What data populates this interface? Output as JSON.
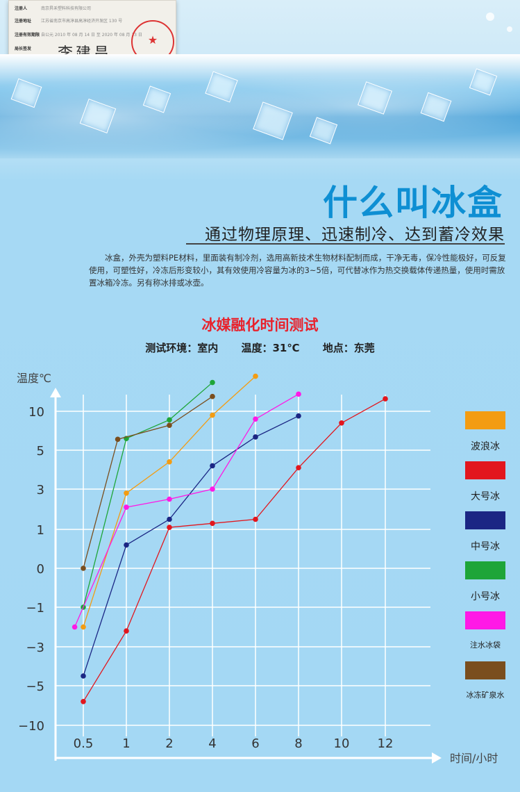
{
  "certificate": {
    "rows": [
      {
        "label": "注册人",
        "value": "南京昇禾塑料科技有限公司"
      },
      {
        "label": "注册地址",
        "value": "江苏省南京市高淳县高淳经济开发区 130 号"
      },
      {
        "label": "注册有效期限",
        "value": "自公元   2010 年 08 月 14 日      至   2020 年 08 月 13 日"
      },
      {
        "label": "局长签发",
        "value": ""
      }
    ],
    "signature": "李建昌",
    "seal_text": "★"
  },
  "header": {
    "title": "什么叫冰盒",
    "subtitle": "通过物理原理、迅速制冷、达到蓄冷效果",
    "description": "冰盒，外壳为塑料PE材料，里面装有制冷剂，选用高新技术生物材料配制而成，干净无毒，保冷性能极好，可反复使用，可塑性好，冷冻后形变较小，其有效使用冷容量为冰的3~5倍，可代替冰作为热交换载体传递热量，使用时需放置冰箱冷冻。另有称冰排或冰壶。"
  },
  "chart_data": {
    "type": "line",
    "title": "冰媒融化时间测试",
    "environment": [
      "测试环境：室内",
      "温度：31℃",
      "地点：东莞"
    ],
    "xlabel": "时间/小时",
    "ylabel": "温度℃",
    "x_ticks": [
      "0.5",
      "1",
      "2",
      "4",
      "6",
      "8",
      "10",
      "12"
    ],
    "y_ticks": [
      "10",
      "5",
      "3",
      "1",
      "0",
      "-1",
      "-3",
      "-5",
      "-10"
    ],
    "grid": true,
    "legend_position": "right",
    "note": "",
    "series": [
      {
        "name": "波浪冰",
        "color": "#f39c12",
        "points": [
          [
            "0.5",
            "-2"
          ],
          [
            "1",
            "2.8"
          ],
          [
            "2",
            "4.4"
          ],
          [
            "4",
            "9.5"
          ],
          [
            "6",
            "14.5"
          ]
        ]
      },
      {
        "name": "大号冰",
        "color": "#e2161d",
        "points": [
          [
            "0.5",
            "-7"
          ],
          [
            "1",
            "-2.2"
          ],
          [
            "2",
            "1.1"
          ],
          [
            "4",
            "1.3"
          ],
          [
            "6",
            "1.5"
          ],
          [
            "8",
            "4.1"
          ],
          [
            "10",
            "8.5"
          ],
          [
            "12",
            "11.6"
          ]
        ]
      },
      {
        "name": "中号冰",
        "color": "#1b2684",
        "points": [
          [
            "0.5",
            "-4.5"
          ],
          [
            "1",
            "0.6"
          ],
          [
            "2",
            "1.5"
          ],
          [
            "4",
            "4.2"
          ],
          [
            "6",
            "6.7"
          ],
          [
            "8",
            "9.4"
          ]
        ]
      },
      {
        "name": "小号冰",
        "color": "#1ea538",
        "points": [
          [
            "0.5",
            "-1"
          ],
          [
            "1",
            "6.5"
          ],
          [
            "2",
            "8.9"
          ],
          [
            "4",
            "13.7"
          ]
        ]
      },
      {
        "name": "注水冰袋",
        "color": "#ff19e6",
        "points": [
          [
            "0.4",
            "-2"
          ],
          [
            "1",
            "2.1"
          ],
          [
            "2",
            "2.5"
          ],
          [
            "4",
            "3"
          ],
          [
            "6",
            "9"
          ],
          [
            "8",
            "12.2"
          ]
        ]
      },
      {
        "name": "冰冻矿泉水",
        "color": "#7a4e1e",
        "points": [
          [
            "0.5",
            "0"
          ],
          [
            "0.9",
            "6.4"
          ],
          [
            "2",
            "8.2"
          ],
          [
            "4",
            "11.9"
          ]
        ]
      }
    ]
  },
  "colors": {
    "title_blue": "#0e8fd3",
    "chart_title_red": "#e8222c"
  }
}
